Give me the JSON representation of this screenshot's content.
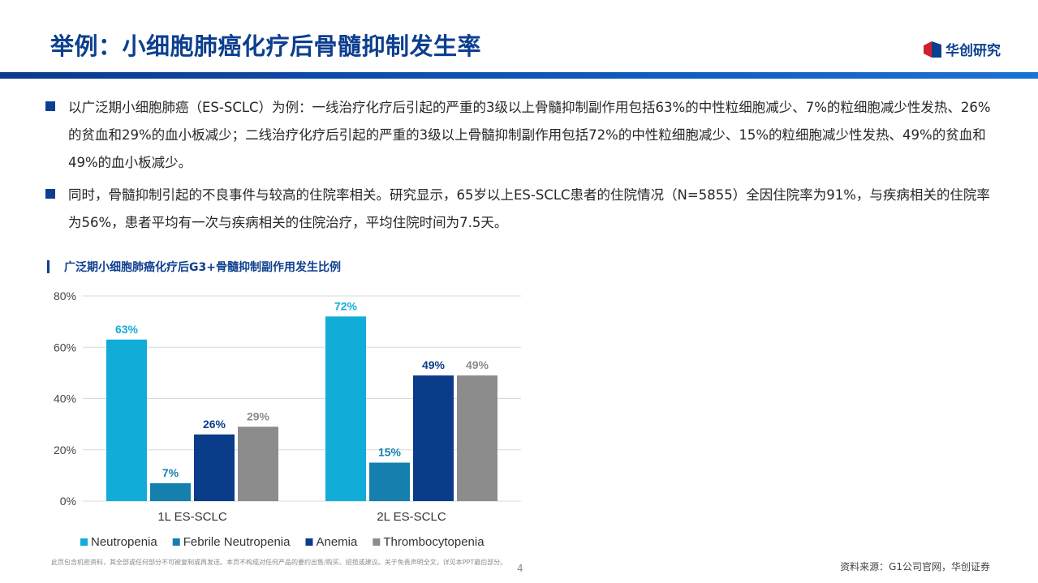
{
  "header": {
    "title": "举例：小细胞肺癌化疗后骨髓抑制发生率",
    "logo_text": "华创研究"
  },
  "bullets": [
    "以广泛期小细胞肺癌（ES-SCLC）为例：一线治疗化疗后引起的严重的3级以上骨髓抑制副作用包括63%的中性粒细胞减少、7%的粒细胞减少性发热、26%的贫血和29%的血小板减少；二线治疗化疗后引起的严重的3级以上骨髓抑制副作用包括72%的中性粒细胞减少、15%的粒细胞减少性发热、49%的贫血和49%的血小板减少。",
    "同时，骨髓抑制引起的不良事件与较高的住院率相关。研究显示，65岁以上ES-SCLC患者的住院情况（N=5855）全因住院率为91%，与疾病相关的住院率为56%，患者平均有一次与疾病相关的住院治疗，平均住院时间为7.5天。"
  ],
  "chart_data": {
    "type": "bar",
    "title": "广泛期小细胞肺癌化疗后G3+骨髓抑制副作用发生比例",
    "categories": [
      "1L ES-SCLC",
      "2L ES-SCLC"
    ],
    "series": [
      {
        "name": "Neutropenia",
        "values": [
          63,
          72
        ],
        "color": "#12acd8"
      },
      {
        "name": "Febrile Neutropenia",
        "values": [
          7,
          15
        ],
        "color": "#157fae"
      },
      {
        "name": "Anemia",
        "values": [
          26,
          49
        ],
        "color": "#0b3c8a"
      },
      {
        "name": "Thrombocytopenia",
        "values": [
          29,
          49
        ],
        "color": "#8c8c8c"
      }
    ],
    "value_suffix": "%",
    "ylim": [
      0,
      80
    ],
    "yticks": [
      0,
      20,
      40,
      60,
      80
    ],
    "grid": true,
    "legend": "bottom"
  },
  "footer": {
    "disclaimer": "此页包含机密资料，其全部或任何部分不可被复制或再发送。本页不构成对任何产品的要约出售/购买、招揽或建议。关于免责声明全文，详见本PPT最后部分。",
    "page_number": "4",
    "source": "资料来源：G1公司官网，华创证券"
  }
}
